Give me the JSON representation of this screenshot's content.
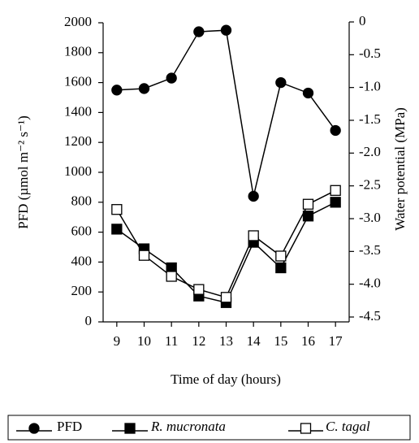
{
  "chart_data": {
    "type": "line",
    "x": [
      9,
      10,
      11,
      12,
      13,
      14,
      15,
      16,
      17
    ],
    "xlim": [
      8.5,
      17.5
    ],
    "xticks": [
      9,
      10,
      11,
      12,
      13,
      14,
      15,
      16,
      17
    ],
    "xlabel": "Time of day (hours)",
    "ylabel": "PFD (µmol m⁻² s⁻¹)",
    "y2label": "Water potential (MPa)",
    "ylim": [
      0,
      2000
    ],
    "yticks": [
      0,
      200,
      400,
      600,
      800,
      1000,
      1200,
      1400,
      1600,
      1800,
      2000
    ],
    "y2lim": [
      -4.5,
      0
    ],
    "y2ticks": [
      {
        "value": -4.5,
        "label": "-4.5"
      },
      {
        "value": -4,
        "label": "-4.0"
      },
      {
        "value": -3.5,
        "label": "-3.5"
      },
      {
        "value": -3,
        "label": "-3.0"
      },
      {
        "value": -2.5,
        "label": "-2.5"
      },
      {
        "value": -2,
        "label": "-2.0"
      },
      {
        "value": -1.5,
        "label": "-1.5"
      },
      {
        "value": -1,
        "label": "-1.0"
      },
      {
        "value": -0.5,
        "label": "-0.5"
      },
      0
    ],
    "series": [
      {
        "name": "PFD",
        "color": "#000000",
        "marker": "circle",
        "filled": true,
        "values": [
          1550,
          1560,
          1630,
          1940,
          1950,
          840,
          1600,
          1530,
          1280
        ]
      },
      {
        "name": "R. mucronata",
        "color": "#000000",
        "marker": "square",
        "filled": true,
        "axis": "y2",
        "values": [
          -3.16,
          -3.46,
          -3.75,
          -4.18,
          -4.28,
          -3.36,
          -3.75,
          -2.96,
          -2.75
        ]
      },
      {
        "name": "C. tagal",
        "color": "#000000",
        "marker": "square",
        "filled": false,
        "axis": "y2",
        "values": [
          -2.86,
          -3.56,
          -3.88,
          -4.08,
          -4.2,
          -3.26,
          -3.57,
          -2.78,
          -2.57
        ]
      }
    ]
  }
}
